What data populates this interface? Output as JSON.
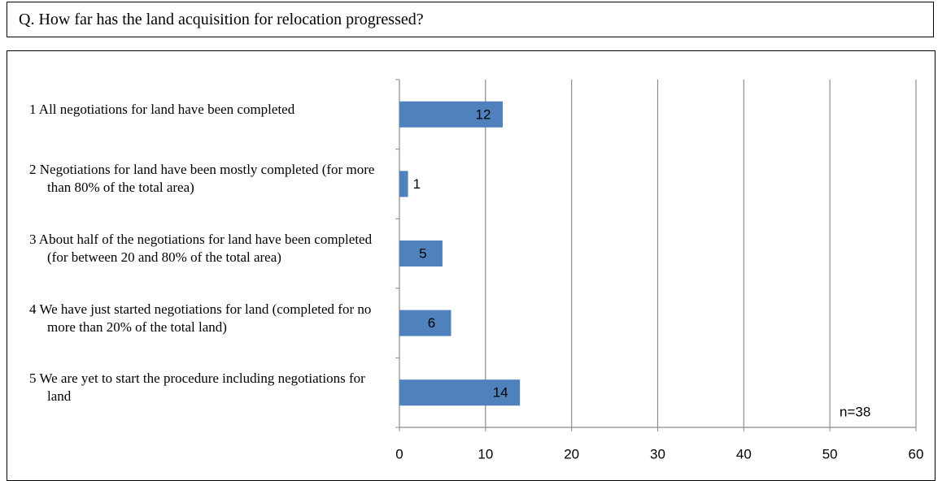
{
  "chart_data": {
    "type": "hbar",
    "title": "Q. How far has the land acquisition for relocation progressed?",
    "categories": [
      "1 All negotiations for land have been completed",
      "2 Negotiations for land have been mostly completed (for more than 80% of the total area)",
      "3 About half of the negotiations for land have been completed (for between 20 and 80% of the total area)",
      "4 We have just started negotiations for land (completed for no more than 20% of the total land)",
      "5 We are yet to start the procedure including negotiations for land"
    ],
    "values": [
      12,
      1,
      5,
      6,
      14
    ],
    "color": "#4f81bd",
    "xlim": [
      0,
      60
    ],
    "xticks": [
      0,
      10,
      20,
      30,
      40,
      50,
      60
    ],
    "grid": true,
    "annotation": "n=38"
  }
}
